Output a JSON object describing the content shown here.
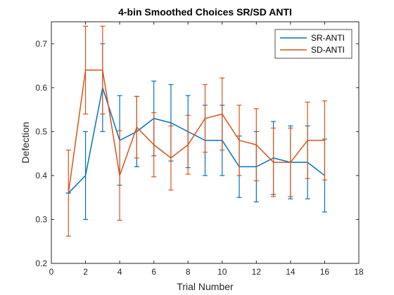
{
  "chart_data": {
    "type": "line",
    "title": "4-bin Smoothed Choices SR/SD ANTI",
    "xlabel": "Trial Number",
    "ylabel": "Defection",
    "xlim": [
      0,
      18
    ],
    "ylim": [
      0.2,
      0.75
    ],
    "xticks": [
      0,
      2,
      4,
      6,
      8,
      10,
      12,
      14,
      16,
      18
    ],
    "yticks": [
      0.2,
      0.3,
      0.4,
      0.5,
      0.6,
      0.7
    ],
    "x": [
      1,
      2,
      3,
      4,
      5,
      6,
      7,
      8,
      9,
      10,
      11,
      12,
      13,
      14,
      15,
      16
    ],
    "legend_position": "top-right",
    "series": [
      {
        "name": "SR-ANTI",
        "color": "#0072BD",
        "values": [
          0.36,
          0.4,
          0.6,
          0.48,
          0.5,
          0.53,
          0.52,
          0.5,
          0.48,
          0.48,
          0.42,
          0.42,
          0.44,
          0.43,
          0.43,
          0.4
        ],
        "err_lower": [
          0.36,
          0.3,
          0.5,
          0.378,
          0.42,
          0.445,
          0.433,
          0.418,
          0.4,
          0.4,
          0.35,
          0.34,
          0.357,
          0.347,
          0.347,
          0.317
        ],
        "err_upper": [
          0.36,
          0.5,
          0.7,
          0.582,
          0.58,
          0.615,
          0.607,
          0.582,
          0.56,
          0.56,
          0.49,
          0.5,
          0.523,
          0.513,
          0.513,
          0.483
        ]
      },
      {
        "name": "SD-ANTI",
        "color": "#D95319",
        "values": [
          0.36,
          0.64,
          0.64,
          0.4,
          0.51,
          0.47,
          0.44,
          0.47,
          0.53,
          0.54,
          0.48,
          0.47,
          0.43,
          0.43,
          0.48,
          0.48
        ],
        "err_lower": [
          0.262,
          0.54,
          0.54,
          0.298,
          0.44,
          0.397,
          0.367,
          0.403,
          0.453,
          0.458,
          0.4,
          0.388,
          0.352,
          0.352,
          0.393,
          0.39
        ],
        "err_upper": [
          0.458,
          0.74,
          0.74,
          0.502,
          0.58,
          0.543,
          0.513,
          0.537,
          0.607,
          0.622,
          0.56,
          0.552,
          0.508,
          0.508,
          0.567,
          0.57
        ]
      }
    ]
  }
}
